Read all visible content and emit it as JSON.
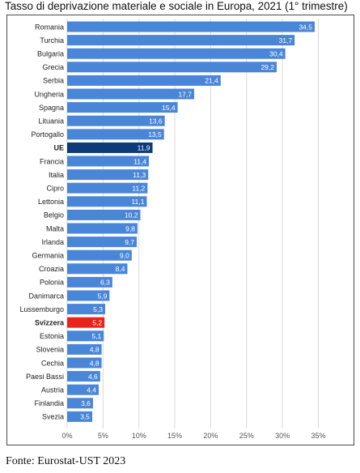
{
  "title": "Tasso di deprivazione materiale e sociale in Europa, 2021 (1° trimestre)",
  "source": "Fonte: Eurostat-UST 2023",
  "colors": {
    "default": "#4a86d8",
    "eu": "#0d3a78",
    "highlight": "#e8241c",
    "grid": "#d9d9d9"
  },
  "chart_data": {
    "type": "bar",
    "orientation": "horizontal",
    "categories": [
      "Romania",
      "Turchia",
      "Bulgaria",
      "Grecia",
      "Serbia",
      "Ungheria",
      "Spagna",
      "Lituania",
      "Portogallo",
      "UE",
      "Francia",
      "Italia",
      "Cipro",
      "Lettonia",
      "Belgio",
      "Malta",
      "Irlanda",
      "Germania",
      "Croazia",
      "Polonia",
      "Danimarca",
      "Lussemburgo",
      "Svizzera",
      "Estonia",
      "Slovenia",
      "Cechia",
      "Paesi Bassi",
      "Austria",
      "Finlandia",
      "Svezia"
    ],
    "values": [
      34.5,
      31.7,
      30.4,
      29.2,
      21.4,
      17.7,
      15.4,
      13.6,
      13.5,
      11.9,
      11.4,
      11.3,
      11.2,
      11.1,
      10.2,
      9.8,
      9.7,
      9.0,
      8.4,
      6.3,
      5.9,
      5.3,
      5.2,
      5.1,
      4.8,
      4.8,
      4.6,
      4.4,
      3.6,
      3.5
    ],
    "data_labels": [
      "34,5",
      "31,7",
      "30,4",
      "29,2",
      "21,4",
      "17,7",
      "15,4",
      "13,6",
      "13,5",
      "11,9",
      "11,4",
      "11,3",
      "11,2",
      "11,1",
      "10,2",
      "9,8",
      "9,7",
      "9,0",
      "8,4",
      "6,3",
      "5,9",
      "5,3",
      "5,2",
      "5,1",
      "4,8",
      "4,8",
      "4,6",
      "4,4",
      "3,6",
      "3,5"
    ],
    "bold_categories": [
      "UE",
      "Svizzera"
    ],
    "highlight": {
      "UE": "eu",
      "Svizzera": "highlight"
    },
    "xticks": [
      "0%",
      "5%",
      "10%",
      "15%",
      "20%",
      "25%",
      "30%",
      "35%"
    ],
    "xlim": [
      0,
      37
    ],
    "grid": true
  }
}
